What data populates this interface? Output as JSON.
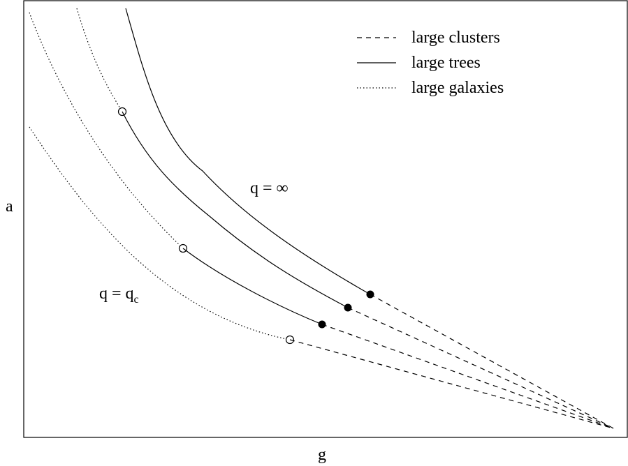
{
  "axes": {
    "x_label": "g",
    "y_label": "a"
  },
  "legend": {
    "placement": "top-right",
    "items": [
      {
        "label": "large clusters",
        "style": "dashed"
      },
      {
        "label": "large trees",
        "style": "solid"
      },
      {
        "label": "large galaxies",
        "style": "dotted"
      }
    ]
  },
  "annotations": {
    "q_infinity": "q = ∞",
    "q_critical_main": "q = q",
    "q_critical_sub": "c"
  },
  "colors": {
    "line": "#000000",
    "background": "#ffffff"
  }
}
